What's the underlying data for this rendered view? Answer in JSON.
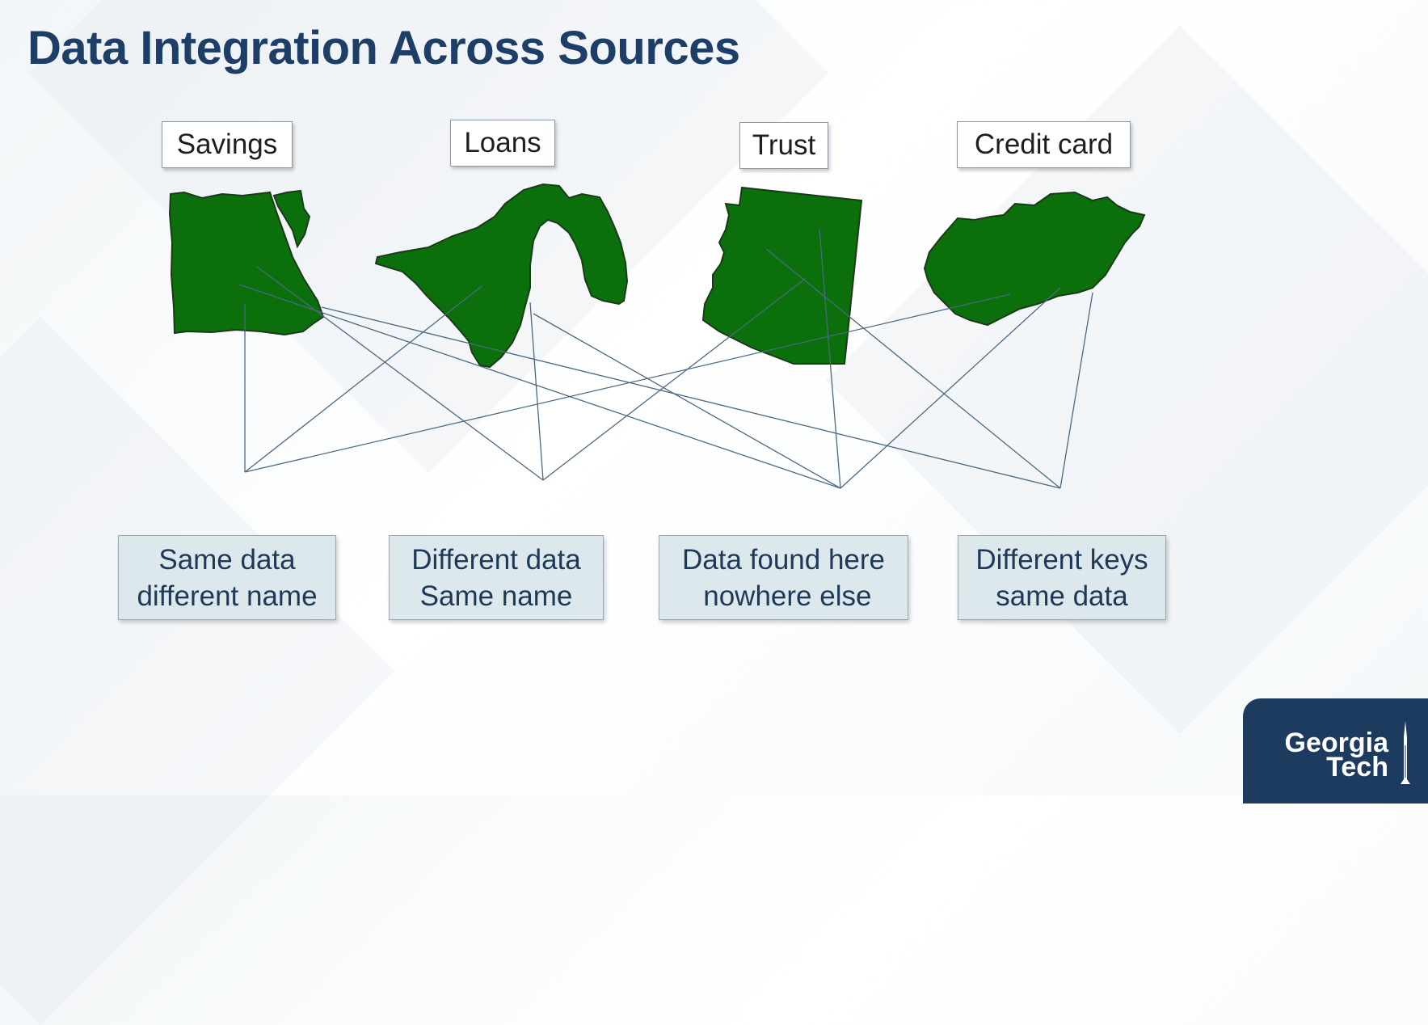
{
  "slide": {
    "title": "Data Integration Across Sources"
  },
  "sources": [
    {
      "label": "Savings",
      "icon": "egypt-map-icon"
    },
    {
      "label": "Loans",
      "icon": "brunei-map-icon"
    },
    {
      "label": "Trust",
      "icon": "arizona-map-icon"
    },
    {
      "label": "Credit card",
      "icon": "hungary-map-icon"
    }
  ],
  "categories": [
    {
      "text": "Same data\ndifferent name"
    },
    {
      "text": "Different data\nSame name"
    },
    {
      "text": "Data found here\n nowhere else"
    },
    {
      "text": "Different keys\nsame data"
    }
  ],
  "logo": {
    "line1": "Georgia",
    "line2": "Tech",
    "icon": "tech-tower-icon"
  },
  "colors": {
    "title": "#1d3e66",
    "map_fill": "#0b700b",
    "connector": "#4a6a82",
    "logo_bg": "#1d3a5f",
    "category_bg": "#dde8ec"
  }
}
